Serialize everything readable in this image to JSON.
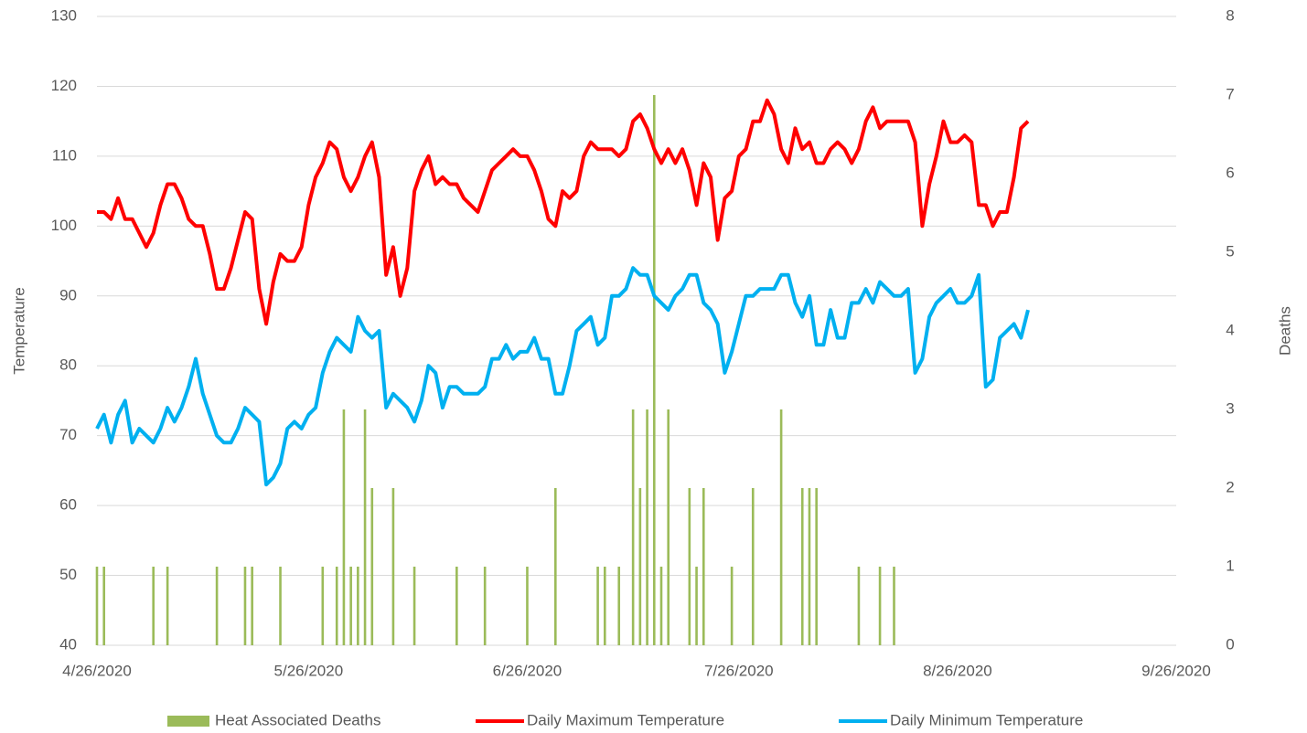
{
  "chart_data": {
    "type": "combo",
    "x": [
      "4/26/2020",
      "4/27/2020",
      "4/28/2020",
      "4/29/2020",
      "4/30/2020",
      "5/1/2020",
      "5/2/2020",
      "5/3/2020",
      "5/4/2020",
      "5/5/2020",
      "5/6/2020",
      "5/7/2020",
      "5/8/2020",
      "5/9/2020",
      "5/10/2020",
      "5/11/2020",
      "5/12/2020",
      "5/13/2020",
      "5/14/2020",
      "5/15/2020",
      "5/16/2020",
      "5/17/2020",
      "5/18/2020",
      "5/19/2020",
      "5/20/2020",
      "5/21/2020",
      "5/22/2020",
      "5/23/2020",
      "5/24/2020",
      "5/25/2020",
      "5/26/2020",
      "5/27/2020",
      "5/28/2020",
      "5/29/2020",
      "5/30/2020",
      "5/31/2020",
      "6/1/2020",
      "6/2/2020",
      "6/3/2020",
      "6/4/2020",
      "6/5/2020",
      "6/6/2020",
      "6/7/2020",
      "6/8/2020",
      "6/9/2020",
      "6/10/2020",
      "6/11/2020",
      "6/12/2020",
      "6/13/2020",
      "6/14/2020",
      "6/15/2020",
      "6/16/2020",
      "6/17/2020",
      "6/18/2020",
      "6/19/2020",
      "6/20/2020",
      "6/21/2020",
      "6/22/2020",
      "6/23/2020",
      "6/24/2020",
      "6/25/2020",
      "6/26/2020",
      "6/27/2020",
      "6/28/2020",
      "6/29/2020",
      "6/30/2020",
      "7/1/2020",
      "7/2/2020",
      "7/3/2020",
      "7/4/2020",
      "7/5/2020",
      "7/6/2020",
      "7/7/2020",
      "7/8/2020",
      "7/9/2020",
      "7/10/2020",
      "7/11/2020",
      "7/12/2020",
      "7/13/2020",
      "7/14/2020",
      "7/15/2020",
      "7/16/2020",
      "7/17/2020",
      "7/18/2020",
      "7/19/2020",
      "7/20/2020",
      "7/21/2020",
      "7/22/2020",
      "7/23/2020",
      "7/24/2020",
      "7/25/2020",
      "7/26/2020",
      "7/27/2020",
      "7/28/2020",
      "7/29/2020",
      "7/30/2020",
      "7/31/2020",
      "8/1/2020",
      "8/2/2020",
      "8/3/2020",
      "8/4/2020",
      "8/5/2020",
      "8/6/2020",
      "8/7/2020",
      "8/8/2020",
      "8/9/2020",
      "8/10/2020",
      "8/11/2020",
      "8/12/2020",
      "8/13/2020",
      "8/14/2020",
      "8/15/2020",
      "8/16/2020",
      "8/17/2020",
      "8/18/2020",
      "8/19/2020",
      "8/20/2020",
      "8/21/2020",
      "8/22/2020",
      "8/23/2020",
      "8/24/2020",
      "8/25/2020",
      "8/26/2020",
      "8/27/2020",
      "8/28/2020",
      "8/29/2020",
      "8/30/2020",
      "8/31/2020",
      "9/1/2020",
      "9/2/2020",
      "9/3/2020",
      "9/4/2020",
      "9/5/2020"
    ],
    "series": [
      {
        "name": "Heat Associated Deaths",
        "type": "bar",
        "axis": "y2",
        "color": "#9bbb59",
        "x": [
          "4/26/2020",
          "4/27/2020",
          "5/4/2020",
          "5/6/2020",
          "5/13/2020",
          "5/17/2020",
          "5/18/2020",
          "5/22/2020",
          "5/28/2020",
          "5/30/2020",
          "5/31/2020",
          "6/1/2020",
          "6/2/2020",
          "6/3/2020",
          "6/4/2020",
          "6/7/2020",
          "6/10/2020",
          "6/16/2020",
          "6/20/2020",
          "6/26/2020",
          "6/30/2020",
          "7/6/2020",
          "7/7/2020",
          "7/9/2020",
          "7/11/2020",
          "7/12/2020",
          "7/13/2020",
          "7/14/2020",
          "7/15/2020",
          "7/16/2020",
          "7/19/2020",
          "7/20/2020",
          "7/21/2020",
          "7/25/2020",
          "7/28/2020",
          "8/1/2020",
          "8/4/2020",
          "8/5/2020",
          "8/6/2020",
          "8/12/2020",
          "8/15/2020",
          "8/17/2020"
        ],
        "values": [
          1,
          1,
          1,
          1,
          1,
          1,
          1,
          1,
          1,
          1,
          3,
          1,
          1,
          3,
          2,
          2,
          1,
          1,
          1,
          1,
          2,
          1,
          1,
          1,
          3,
          2,
          3,
          7,
          1,
          3,
          2,
          1,
          2,
          1,
          2,
          3,
          2,
          2,
          2,
          1,
          1,
          1
        ]
      },
      {
        "name": "Daily Maximum Temperature",
        "type": "line",
        "color": "#ff0000",
        "values": [
          102,
          102,
          101,
          104,
          101,
          101,
          99,
          97,
          99,
          103,
          106,
          106,
          104,
          101,
          100,
          100,
          96,
          91,
          91,
          94,
          98,
          102,
          101,
          91,
          86,
          92,
          96,
          95,
          95,
          97,
          103,
          107,
          109,
          112,
          111,
          107,
          105,
          107,
          110,
          112,
          107,
          93,
          97,
          90,
          94,
          105,
          108,
          110,
          106,
          107,
          106,
          106,
          104,
          103,
          102,
          105,
          108,
          109,
          110,
          111,
          110,
          110,
          108,
          105,
          101,
          100,
          105,
          104,
          105,
          110,
          112,
          111,
          111,
          111,
          110,
          111,
          115,
          116,
          114,
          111,
          109,
          111,
          109,
          111,
          108,
          103,
          109,
          107,
          98,
          104,
          105,
          110,
          111,
          115,
          115,
          118,
          116,
          111,
          109,
          114,
          111,
          112,
          109,
          109,
          111,
          112,
          111,
          109,
          111,
          115,
          117,
          114,
          115,
          115,
          115,
          115,
          112,
          100,
          106,
          110,
          115,
          112,
          112,
          113,
          112,
          103,
          103,
          100,
          102,
          102,
          107,
          114,
          115
        ]
      },
      {
        "name": "Daily Minimum Temperature",
        "type": "line",
        "color": "#00b0f0",
        "values": [
          71,
          73,
          69,
          73,
          75,
          69,
          71,
          70,
          69,
          71,
          74,
          72,
          74,
          77,
          81,
          76,
          73,
          70,
          69,
          69,
          71,
          74,
          73,
          72,
          63,
          64,
          66,
          71,
          72,
          71,
          73,
          74,
          79,
          82,
          84,
          83,
          82,
          87,
          85,
          84,
          85,
          74,
          76,
          75,
          74,
          72,
          75,
          80,
          79,
          74,
          77,
          77,
          76,
          76,
          76,
          77,
          81,
          81,
          83,
          81,
          82,
          82,
          84,
          81,
          81,
          76,
          76,
          80,
          85,
          86,
          87,
          83,
          84,
          90,
          90,
          91,
          94,
          93,
          93,
          90,
          89,
          88,
          90,
          91,
          93,
          93,
          89,
          88,
          86,
          79,
          82,
          86,
          90,
          90,
          91,
          91,
          91,
          93,
          93,
          89,
          87,
          90,
          83,
          83,
          88,
          84,
          84,
          89,
          89,
          91,
          89,
          92,
          91,
          90,
          90,
          91,
          79,
          81,
          87,
          89,
          90,
          91,
          89,
          89,
          90,
          93,
          77,
          78,
          84,
          85,
          86,
          84,
          88
        ]
      }
    ],
    "ylabel": "Temperature",
    "y2label": "Deaths",
    "xlim": [
      "4/26/2020",
      "9/26/2020"
    ],
    "xticks": [
      "4/26/2020",
      "5/26/2020",
      "6/26/2020",
      "7/26/2020",
      "8/26/2020",
      "9/26/2020"
    ],
    "ylim": [
      40,
      130
    ],
    "yticks": [
      40,
      50,
      60,
      70,
      80,
      90,
      100,
      110,
      120,
      130
    ],
    "y2lim": [
      0,
      8
    ],
    "y2ticks": [
      0,
      1,
      2,
      3,
      4,
      5,
      6,
      7,
      8
    ],
    "grid": true,
    "legend": "bottom"
  }
}
